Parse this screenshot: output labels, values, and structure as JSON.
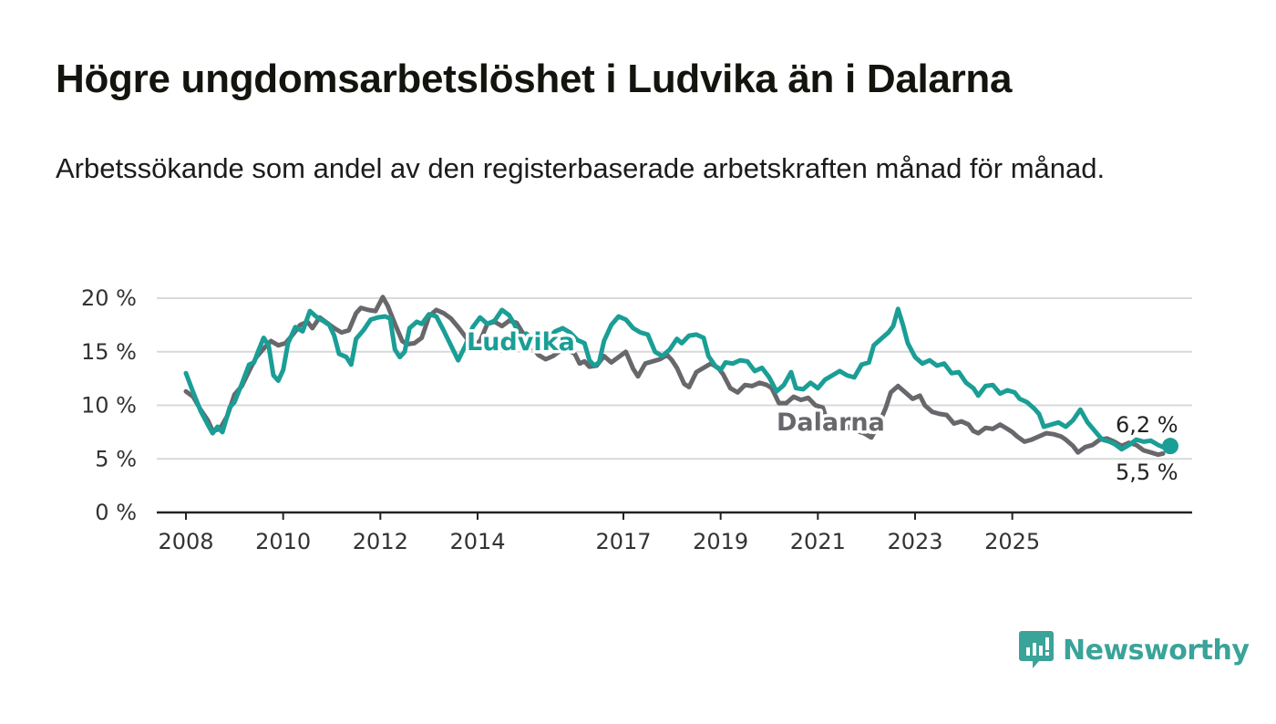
{
  "title": "Högre ungdomsarbetslöshet i Ludvika än i Dalarna",
  "subtitle": "Arbetssökande som andel av den registerbaserade arbetskraften månad för månad.",
  "brand": {
    "name": "Newsworthy",
    "icon": "bar-chart-speech-bubble-icon",
    "color": "#3aa39a"
  },
  "chart_data": {
    "type": "line",
    "ylim": [
      0,
      20
    ],
    "y_ticks": [
      0,
      5,
      10,
      15,
      20
    ],
    "y_tick_labels": [
      "0 %",
      "5 %",
      "10 %",
      "15 %",
      "20 %"
    ],
    "x_ticks": [
      2008,
      2010,
      2012,
      2014,
      2017,
      2019,
      2021,
      2023,
      2025
    ],
    "grid": "horizontal",
    "series": [
      {
        "name": "Ludvika",
        "color": "#1a9e96",
        "end_label": "6,2 %",
        "points": [
          [
            2008.0,
            13.0
          ],
          [
            2008.15,
            11.2
          ],
          [
            2008.3,
            9.5
          ],
          [
            2008.45,
            8.2
          ],
          [
            2008.55,
            7.4
          ],
          [
            2008.65,
            8.0
          ],
          [
            2008.75,
            7.5
          ],
          [
            2008.9,
            9.8
          ],
          [
            2009.0,
            10.3
          ],
          [
            2009.15,
            12.0
          ],
          [
            2009.3,
            13.8
          ],
          [
            2009.4,
            14.0
          ],
          [
            2009.5,
            15.2
          ],
          [
            2009.6,
            16.3
          ],
          [
            2009.7,
            15.6
          ],
          [
            2009.8,
            12.8
          ],
          [
            2009.9,
            12.3
          ],
          [
            2010.0,
            13.3
          ],
          [
            2010.1,
            15.8
          ],
          [
            2010.25,
            17.3
          ],
          [
            2010.4,
            16.9
          ],
          [
            2010.55,
            18.8
          ],
          [
            2010.7,
            18.2
          ],
          [
            2010.85,
            17.8
          ],
          [
            2010.95,
            17.5
          ],
          [
            2011.05,
            16.5
          ],
          [
            2011.15,
            14.8
          ],
          [
            2011.3,
            14.5
          ],
          [
            2011.4,
            13.8
          ],
          [
            2011.5,
            16.2
          ],
          [
            2011.65,
            17.0
          ],
          [
            2011.8,
            18.0
          ],
          [
            2011.95,
            18.2
          ],
          [
            2012.1,
            18.3
          ],
          [
            2012.2,
            18.1
          ],
          [
            2012.3,
            15.2
          ],
          [
            2012.4,
            14.5
          ],
          [
            2012.5,
            15.0
          ],
          [
            2012.6,
            17.2
          ],
          [
            2012.75,
            17.8
          ],
          [
            2012.85,
            17.6
          ],
          [
            2013.0,
            18.5
          ],
          [
            2013.15,
            18.3
          ],
          [
            2013.3,
            17.0
          ],
          [
            2013.45,
            15.6
          ],
          [
            2013.6,
            14.2
          ],
          [
            2013.75,
            15.6
          ],
          [
            2013.9,
            17.3
          ],
          [
            2014.05,
            18.2
          ],
          [
            2014.2,
            17.6
          ],
          [
            2014.35,
            17.9
          ],
          [
            2014.5,
            18.9
          ],
          [
            2014.65,
            18.4
          ],
          [
            2014.8,
            17.2
          ],
          [
            2014.9,
            16.0
          ],
          [
            2015.0,
            16.7
          ],
          [
            2015.15,
            16.1
          ],
          [
            2015.3,
            15.5
          ],
          [
            2015.45,
            16.3
          ],
          [
            2015.6,
            16.9
          ],
          [
            2015.75,
            17.2
          ],
          [
            2015.9,
            16.8
          ],
          [
            2016.05,
            16.1
          ],
          [
            2016.2,
            15.8
          ],
          [
            2016.3,
            14.2
          ],
          [
            2016.4,
            13.7
          ],
          [
            2016.5,
            14.0
          ],
          [
            2016.6,
            16.0
          ],
          [
            2016.75,
            17.5
          ],
          [
            2016.9,
            18.3
          ],
          [
            2017.05,
            18.0
          ],
          [
            2017.2,
            17.2
          ],
          [
            2017.35,
            16.8
          ],
          [
            2017.5,
            16.6
          ],
          [
            2017.65,
            15.0
          ],
          [
            2017.8,
            14.6
          ],
          [
            2017.95,
            15.2
          ],
          [
            2018.1,
            16.2
          ],
          [
            2018.2,
            15.8
          ],
          [
            2018.35,
            16.5
          ],
          [
            2018.5,
            16.6
          ],
          [
            2018.65,
            16.3
          ],
          [
            2018.75,
            14.6
          ],
          [
            2018.9,
            13.6
          ],
          [
            2019.0,
            13.3
          ],
          [
            2019.1,
            14.0
          ],
          [
            2019.25,
            13.9
          ],
          [
            2019.4,
            14.2
          ],
          [
            2019.55,
            14.1
          ],
          [
            2019.7,
            13.2
          ],
          [
            2019.85,
            13.5
          ],
          [
            2020.0,
            12.6
          ],
          [
            2020.15,
            11.3
          ],
          [
            2020.3,
            11.9
          ],
          [
            2020.45,
            13.1
          ],
          [
            2020.55,
            11.6
          ],
          [
            2020.7,
            11.5
          ],
          [
            2020.85,
            12.1
          ],
          [
            2021.0,
            11.6
          ],
          [
            2021.15,
            12.4
          ],
          [
            2021.3,
            12.8
          ],
          [
            2021.45,
            13.2
          ],
          [
            2021.6,
            12.8
          ],
          [
            2021.75,
            12.6
          ],
          [
            2021.9,
            13.8
          ],
          [
            2022.05,
            14.0
          ],
          [
            2022.15,
            15.6
          ],
          [
            2022.3,
            16.2
          ],
          [
            2022.45,
            16.8
          ],
          [
            2022.55,
            17.4
          ],
          [
            2022.65,
            19.0
          ],
          [
            2022.75,
            17.5
          ],
          [
            2022.85,
            15.8
          ],
          [
            2023.0,
            14.5
          ],
          [
            2023.15,
            13.9
          ],
          [
            2023.3,
            14.2
          ],
          [
            2023.45,
            13.7
          ],
          [
            2023.6,
            13.9
          ],
          [
            2023.75,
            13.0
          ],
          [
            2023.9,
            13.1
          ],
          [
            2024.05,
            12.1
          ],
          [
            2024.2,
            11.6
          ],
          [
            2024.3,
            10.9
          ],
          [
            2024.45,
            11.8
          ],
          [
            2024.6,
            11.9
          ],
          [
            2024.75,
            11.1
          ],
          [
            2024.9,
            11.4
          ],
          [
            2025.05,
            11.2
          ],
          [
            2025.15,
            10.6
          ],
          [
            2025.3,
            10.3
          ],
          [
            2025.45,
            9.7
          ],
          [
            2025.55,
            9.2
          ],
          [
            2025.65,
            8.0
          ],
          [
            2025.8,
            8.2
          ],
          [
            2025.95,
            8.4
          ],
          [
            2026.1,
            8.0
          ],
          [
            2026.25,
            8.6
          ],
          [
            2026.4,
            9.6
          ],
          [
            2026.55,
            8.4
          ],
          [
            2026.7,
            7.6
          ],
          [
            2026.85,
            6.8
          ],
          [
            2027.0,
            6.6
          ],
          [
            2027.1,
            6.4
          ],
          [
            2027.25,
            5.9
          ],
          [
            2027.4,
            6.3
          ],
          [
            2027.55,
            6.8
          ],
          [
            2027.7,
            6.6
          ],
          [
            2027.85,
            6.7
          ],
          [
            2028.0,
            6.3
          ],
          [
            2028.15,
            6.0
          ],
          [
            2028.25,
            6.2
          ]
        ]
      },
      {
        "name": "Dalarna",
        "color": "#68676b",
        "end_label": "5,5 %",
        "points": [
          [
            2008.0,
            11.3
          ],
          [
            2008.15,
            10.8
          ],
          [
            2008.3,
            9.6
          ],
          [
            2008.45,
            8.6
          ],
          [
            2008.55,
            7.6
          ],
          [
            2008.7,
            7.8
          ],
          [
            2008.85,
            9.0
          ],
          [
            2009.0,
            11.0
          ],
          [
            2009.15,
            11.8
          ],
          [
            2009.3,
            13.2
          ],
          [
            2009.45,
            14.5
          ],
          [
            2009.6,
            15.3
          ],
          [
            2009.75,
            16.0
          ],
          [
            2009.9,
            15.6
          ],
          [
            2010.05,
            15.8
          ],
          [
            2010.2,
            16.6
          ],
          [
            2010.35,
            17.5
          ],
          [
            2010.5,
            17.8
          ],
          [
            2010.6,
            17.2
          ],
          [
            2010.75,
            18.2
          ],
          [
            2010.9,
            17.7
          ],
          [
            2011.05,
            17.2
          ],
          [
            2011.2,
            16.8
          ],
          [
            2011.35,
            17.0
          ],
          [
            2011.5,
            18.6
          ],
          [
            2011.6,
            19.1
          ],
          [
            2011.75,
            18.9
          ],
          [
            2011.9,
            18.8
          ],
          [
            2012.05,
            20.1
          ],
          [
            2012.15,
            19.3
          ],
          [
            2012.3,
            17.6
          ],
          [
            2012.45,
            16.0
          ],
          [
            2012.55,
            15.7
          ],
          [
            2012.7,
            15.8
          ],
          [
            2012.85,
            16.3
          ],
          [
            2013.0,
            18.3
          ],
          [
            2013.15,
            18.9
          ],
          [
            2013.3,
            18.6
          ],
          [
            2013.45,
            18.1
          ],
          [
            2013.6,
            17.3
          ],
          [
            2013.75,
            16.4
          ],
          [
            2013.9,
            15.5
          ],
          [
            2014.05,
            16.0
          ],
          [
            2014.2,
            17.6
          ],
          [
            2014.35,
            17.8
          ],
          [
            2014.5,
            17.4
          ],
          [
            2014.65,
            17.9
          ],
          [
            2014.8,
            17.7
          ],
          [
            2014.95,
            16.6
          ],
          [
            2015.1,
            15.6
          ],
          [
            2015.25,
            14.7
          ],
          [
            2015.4,
            14.3
          ],
          [
            2015.55,
            14.6
          ],
          [
            2015.7,
            15.1
          ],
          [
            2015.85,
            15.2
          ],
          [
            2016.0,
            14.8
          ],
          [
            2016.1,
            13.9
          ],
          [
            2016.2,
            14.1
          ],
          [
            2016.3,
            13.6
          ],
          [
            2016.45,
            13.7
          ],
          [
            2016.6,
            14.6
          ],
          [
            2016.75,
            14.0
          ],
          [
            2016.9,
            14.5
          ],
          [
            2017.05,
            15.0
          ],
          [
            2017.2,
            13.4
          ],
          [
            2017.3,
            12.7
          ],
          [
            2017.45,
            13.9
          ],
          [
            2017.6,
            14.1
          ],
          [
            2017.75,
            14.3
          ],
          [
            2017.9,
            14.7
          ],
          [
            2018.0,
            14.2
          ],
          [
            2018.1,
            13.5
          ],
          [
            2018.25,
            12.0
          ],
          [
            2018.35,
            11.7
          ],
          [
            2018.5,
            13.1
          ],
          [
            2018.65,
            13.5
          ],
          [
            2018.8,
            13.9
          ],
          [
            2018.95,
            13.5
          ],
          [
            2019.05,
            12.9
          ],
          [
            2019.2,
            11.6
          ],
          [
            2019.35,
            11.2
          ],
          [
            2019.5,
            11.9
          ],
          [
            2019.65,
            11.8
          ],
          [
            2019.8,
            12.1
          ],
          [
            2019.95,
            11.9
          ],
          [
            2020.05,
            11.6
          ],
          [
            2020.2,
            10.2
          ],
          [
            2020.35,
            10.2
          ],
          [
            2020.5,
            10.8
          ],
          [
            2020.65,
            10.5
          ],
          [
            2020.8,
            10.7
          ],
          [
            2020.95,
            10.0
          ],
          [
            2021.1,
            9.8
          ],
          [
            2021.2,
            8.4
          ],
          [
            2021.35,
            8.2
          ],
          [
            2021.5,
            8.4
          ],
          [
            2021.65,
            7.9
          ],
          [
            2021.8,
            7.6
          ],
          [
            2021.95,
            7.4
          ],
          [
            2022.1,
            7.0
          ],
          [
            2022.25,
            8.2
          ],
          [
            2022.4,
            9.8
          ],
          [
            2022.5,
            11.2
          ],
          [
            2022.65,
            11.8
          ],
          [
            2022.8,
            11.2
          ],
          [
            2022.95,
            10.6
          ],
          [
            2023.1,
            10.9
          ],
          [
            2023.2,
            10.0
          ],
          [
            2023.35,
            9.4
          ],
          [
            2023.5,
            9.2
          ],
          [
            2023.65,
            9.1
          ],
          [
            2023.8,
            8.3
          ],
          [
            2023.95,
            8.5
          ],
          [
            2024.1,
            8.2
          ],
          [
            2024.2,
            7.6
          ],
          [
            2024.3,
            7.4
          ],
          [
            2024.45,
            7.9
          ],
          [
            2024.6,
            7.8
          ],
          [
            2024.75,
            8.2
          ],
          [
            2024.9,
            7.8
          ],
          [
            2025.0,
            7.5
          ],
          [
            2025.1,
            7.1
          ],
          [
            2025.25,
            6.6
          ],
          [
            2025.4,
            6.8
          ],
          [
            2025.55,
            7.1
          ],
          [
            2025.7,
            7.4
          ],
          [
            2025.85,
            7.3
          ],
          [
            2026.0,
            7.1
          ],
          [
            2026.1,
            6.8
          ],
          [
            2026.25,
            6.2
          ],
          [
            2026.35,
            5.6
          ],
          [
            2026.5,
            6.1
          ],
          [
            2026.65,
            6.3
          ],
          [
            2026.8,
            6.8
          ],
          [
            2026.95,
            6.9
          ],
          [
            2027.1,
            6.6
          ],
          [
            2027.25,
            6.2
          ],
          [
            2027.4,
            6.5
          ],
          [
            2027.55,
            6.3
          ],
          [
            2027.7,
            5.8
          ],
          [
            2027.85,
            5.6
          ],
          [
            2028.0,
            5.4
          ],
          [
            2028.1,
            5.5
          ]
        ]
      }
    ]
  }
}
